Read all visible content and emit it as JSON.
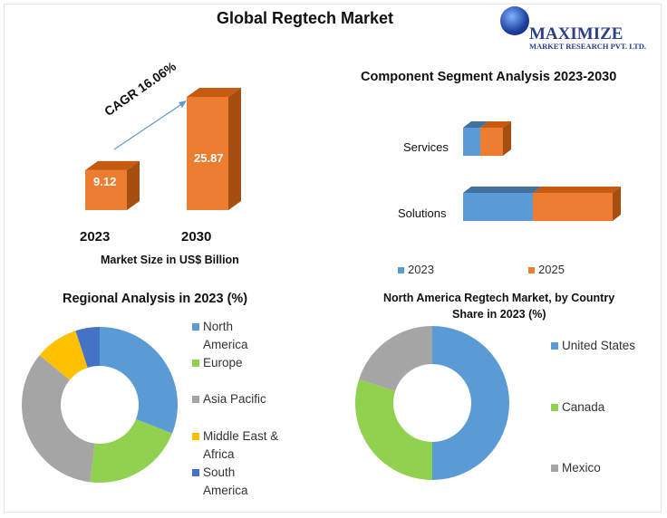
{
  "title": "Global Regtech Market",
  "logo": {
    "name": "MAXIMIZE",
    "sub": "MARKET RESEARCH PVT. LTD."
  },
  "colors": {
    "orange": "#ed7d31",
    "blue": "#5b9bd5",
    "green": "#92d050",
    "gray": "#a5a5a5",
    "yellow": "#ffc000",
    "darkblue": "#4472c4"
  },
  "chart_data": [
    {
      "type": "bar",
      "title": "",
      "categories": [
        "2023",
        "2030"
      ],
      "values": [
        9.12,
        25.87
      ],
      "data_labels": [
        "9.12",
        "25.87"
      ],
      "xlabel": "Market Size in US$ Billion",
      "annotation": "CAGR 16.06%",
      "style": "3d"
    },
    {
      "type": "bar",
      "orientation": "horizontal-stacked",
      "title": "Component Segment Analysis 2023-2030",
      "categories": [
        "Services",
        "Solutions"
      ],
      "series": [
        {
          "name": "2023",
          "values": [
            19,
            77
          ]
        },
        {
          "name": "2025",
          "values": [
            25,
            88
          ]
        }
      ],
      "legend": "bottom",
      "style": "3d"
    },
    {
      "type": "pie",
      "donut": true,
      "title": "Regional Analysis in 2023 (%)",
      "labels": [
        "North America",
        "Europe",
        "Asia Pacific",
        "Middle East & Africa",
        "South America"
      ],
      "legend_lines": [
        [
          "North",
          "America"
        ],
        [
          "Europe"
        ],
        [
          "Asia Pacific"
        ],
        [
          "Middle East &",
          "Africa"
        ],
        [
          "South",
          "America"
        ]
      ],
      "values": [
        31,
        21,
        34,
        9,
        5
      ],
      "legend": "right"
    },
    {
      "type": "pie",
      "donut": true,
      "title": "North America Regtech Market, by Country",
      "subtitle": "Share in 2023 (%)",
      "labels": [
        "United States",
        "Canada",
        "Mexico"
      ],
      "values": [
        50,
        30,
        20
      ],
      "legend": "right"
    }
  ]
}
